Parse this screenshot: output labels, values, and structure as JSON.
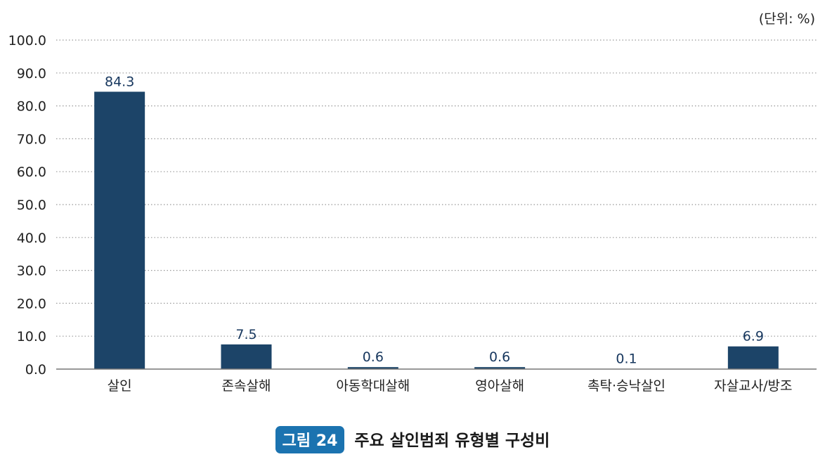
{
  "unit_label": "(단위: %)",
  "figure_caption": {
    "badge": "그림 24",
    "title": "주요 살인범죄 유형별 구성비"
  },
  "colors": {
    "bar": "#1c4468",
    "grid": "#999999",
    "axis": "#777777",
    "badge": "#1b73b0"
  },
  "chart_data": {
    "type": "bar",
    "title": "주요 살인범죄 유형별 구성비",
    "unit": "(단위: %)",
    "categories": [
      "살인",
      "존속살해",
      "아동학대살해",
      "영아살해",
      "촉탁·승낙살인",
      "자살교사/방조"
    ],
    "values": [
      84.3,
      7.5,
      0.6,
      0.6,
      0.1,
      6.9
    ],
    "value_labels": [
      "84.3",
      "7.5",
      "0.6",
      "0.6",
      "0.1",
      "6.9"
    ],
    "ylim": [
      0,
      100
    ],
    "yticks": [
      0,
      10,
      20,
      30,
      40,
      50,
      60,
      70,
      80,
      90,
      100
    ],
    "ytick_labels": [
      "0.0",
      "10.0",
      "20.0",
      "30.0",
      "40.0",
      "50.0",
      "60.0",
      "70.0",
      "80.0",
      "90.0",
      "100.0"
    ],
    "grid": true,
    "grid_style": "dotted",
    "legend": "none"
  }
}
